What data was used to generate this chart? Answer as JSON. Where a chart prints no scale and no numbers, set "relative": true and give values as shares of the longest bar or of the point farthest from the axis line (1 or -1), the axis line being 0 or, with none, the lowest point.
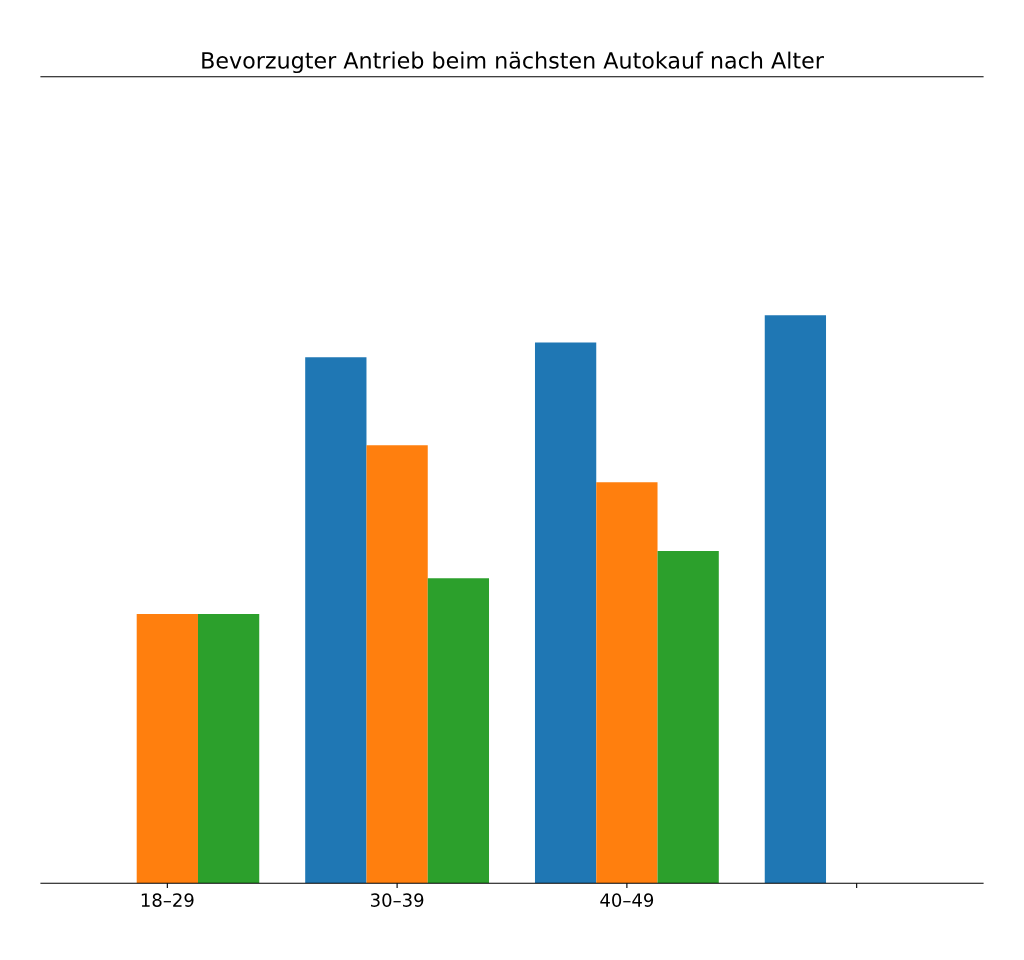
{
  "chart_data": {
    "type": "bar",
    "title": "Bevorzugter Antrieb beim nächsten Autokauf nach Alter",
    "relative": true,
    "categories": [
      "18–29",
      "30–39",
      "40–49",
      null
    ],
    "series": [
      {
        "color": "#1f77b4",
        "values": [
          null,
          0.926,
          0.952,
          1.0
        ]
      },
      {
        "color": "#ff7f0e",
        "values": [
          0.474,
          0.771,
          0.706,
          null
        ]
      },
      {
        "color": "#2ca02c",
        "values": [
          0.474,
          0.537,
          0.585,
          null
        ]
      }
    ],
    "grid": false,
    "legend": false
  }
}
